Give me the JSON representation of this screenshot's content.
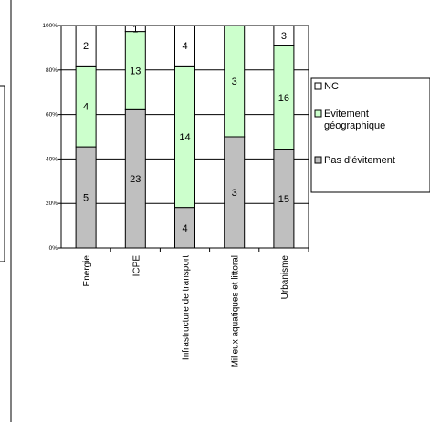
{
  "chart_data": {
    "type": "bar",
    "stacked": true,
    "percent": true,
    "categories": [
      "Energie",
      "ICPE",
      "Infrastructure de transport",
      "Milieux aquatiques et littoral",
      "Urbanisme"
    ],
    "series": [
      {
        "name": "Pas d'évitement",
        "values": [
          5,
          23,
          4,
          3,
          15
        ],
        "color": "#bfbfbf"
      },
      {
        "name": "Evitement géographique",
        "values": [
          4,
          13,
          14,
          3,
          16
        ],
        "color": "#ccffcc"
      },
      {
        "name": "NC",
        "values": [
          2,
          1,
          4,
          0,
          3
        ],
        "color": "#ffffff"
      }
    ],
    "y_ticks": [
      "0%",
      "20%",
      "40%",
      "60%",
      "80%",
      "100%"
    ],
    "ylim": [
      0,
      100
    ],
    "grid": true,
    "legend": {
      "placement": "right",
      "entries": [
        {
          "lines": [
            "NC"
          ],
          "color": "#ffffff"
        },
        {
          "lines": [
            "Evitement",
            "géographique"
          ],
          "color": "#ccffcc"
        },
        {
          "lines": [
            "Pas d'évitement"
          ],
          "color": "#bfbfbf"
        }
      ]
    },
    "title": "",
    "xlabel": "",
    "ylabel": ""
  }
}
